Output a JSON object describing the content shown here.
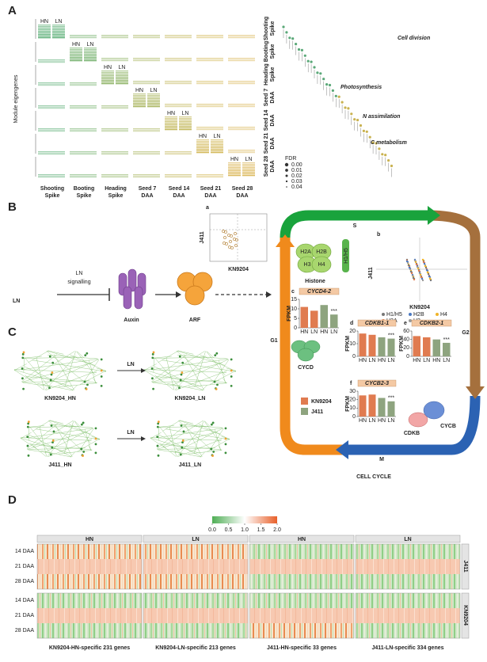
{
  "panel_a": {
    "label": "A",
    "ylabel": "Module eigengenes",
    "hn": "HN",
    "ln": "LN",
    "stages": [
      [
        "Shooting",
        "Spike"
      ],
      [
        "Booting",
        "Spike"
      ],
      [
        "Heading",
        "Spike"
      ],
      [
        "Seed 7",
        "DAA"
      ],
      [
        "Seed 14",
        "DAA"
      ],
      [
        "Seed 21",
        "DAA"
      ],
      [
        "Seed 28",
        "DAA"
      ]
    ],
    "categories": [
      "Cell division",
      "Photosynthesis",
      "N assimilation",
      "C metabolism"
    ],
    "fdr_title": "FDR",
    "fdr": [
      {
        "value": 0,
        "label": "0.00"
      },
      {
        "value": 0.01,
        "label": "0.01"
      },
      {
        "value": 0.02,
        "label": "0.02"
      },
      {
        "value": 0.03,
        "label": "0.03"
      },
      {
        "value": 0.04,
        "label": "0.04"
      }
    ]
  },
  "panel_b": {
    "label": "B",
    "ln": "LN",
    "ln_signalling": [
      "LN",
      "signalling"
    ],
    "auxin": "Auxin",
    "arf": "ARF",
    "scatter_a": {
      "letter": "a",
      "xlabel": "KN9204",
      "ylabel": "J411"
    },
    "scatter_b": {
      "letter": "b",
      "xlabel": "KN9204",
      "ylabel": "J411",
      "legend": [
        "H1/H5",
        "H2A",
        "H2B",
        "H3",
        "H4"
      ]
    },
    "histone": {
      "title": "Histone",
      "parts": [
        "H2A",
        "H2B",
        "H3",
        "H4"
      ],
      "h1": "H1/H5"
    },
    "phases": {
      "s": "S",
      "g2": "G2",
      "m": "M",
      "g1": "G1"
    },
    "cell_cycle": "CELL CYCLE",
    "cycd": "CYCD",
    "cdkb": "CDKB",
    "cycb": "CYCB",
    "legend": [
      {
        "name": "KN9204",
        "color": "#e07b50"
      },
      {
        "name": "J411",
        "color": "#8ea47f"
      }
    ],
    "fpkm_charts": [
      {
        "letter": "c",
        "gene": "CYCD4-2",
        "ylabel": "FPKM",
        "categories": [
          "HN",
          "LN",
          "HN",
          "LN"
        ],
        "values": [
          11,
          9,
          12,
          7
        ],
        "colors": [
          "#e07b50",
          "#e07b50",
          "#8ea47f",
          "#8ea47f"
        ],
        "ylim": [
          0,
          15
        ],
        "yticks": [
          0,
          5,
          10,
          15
        ],
        "annotation": "***"
      },
      {
        "letter": "d",
        "gene": "CDKB1-1",
        "ylabel": "FPKM",
        "categories": [
          "HN",
          "LN",
          "HN",
          "LN"
        ],
        "values": [
          18,
          17,
          15,
          14
        ],
        "colors": [
          "#e07b50",
          "#e07b50",
          "#8ea47f",
          "#8ea47f"
        ],
        "ylim": [
          0,
          20
        ],
        "yticks": [
          0,
          10,
          20
        ],
        "annotation": "***"
      },
      {
        "letter": "e",
        "gene": "CDKB2-1",
        "ylabel": "FPKM",
        "categories": [
          "HN",
          "LN",
          "HN",
          "LN"
        ],
        "values": [
          48,
          45,
          40,
          32
        ],
        "colors": [
          "#e07b50",
          "#e07b50",
          "#8ea47f",
          "#8ea47f"
        ],
        "ylim": [
          0,
          60
        ],
        "yticks": [
          0,
          20,
          40,
          60
        ],
        "annotation": "***"
      },
      {
        "letter": "f",
        "gene": "CYCB2-3",
        "ylabel": "FPKM",
        "categories": [
          "HN",
          "LN",
          "HN",
          "LN"
        ],
        "values": [
          25,
          26,
          22,
          18
        ],
        "colors": [
          "#e07b50",
          "#e07b50",
          "#8ea47f",
          "#8ea47f"
        ],
        "ylim": [
          0,
          30
        ],
        "yticks": [
          0,
          10,
          20,
          30
        ],
        "annotation": "***"
      }
    ]
  },
  "panel_c": {
    "label": "C",
    "arrow": "LN",
    "networks": [
      "KN9204_HN",
      "KN9204_LN",
      "J411_HN",
      "J411_LN"
    ]
  },
  "panel_d": {
    "label": "D",
    "colorbar": {
      "lim": [
        0,
        2
      ],
      "ticks": [
        {
          "value": 0,
          "label": "0.0"
        },
        {
          "value": 0.5,
          "label": "0.5"
        },
        {
          "value": 1,
          "label": "1.0"
        },
        {
          "value": 1.5,
          "label": "1.5"
        },
        {
          "value": 2,
          "label": "2.0"
        }
      ]
    },
    "columns": [
      "HN",
      "LN",
      "HN",
      "LN"
    ],
    "rows": [
      "14 DAA",
      "21 DAA",
      "28 DAA"
    ],
    "groups": [
      "J411",
      "KN9204"
    ],
    "footers": [
      "KN9204-HN-specific 231 genes",
      "KN9204-LN-specific 213 genes",
      "J411-HN-specific 33 genes",
      "J411-LN-specific 334 genes"
    ]
  }
}
